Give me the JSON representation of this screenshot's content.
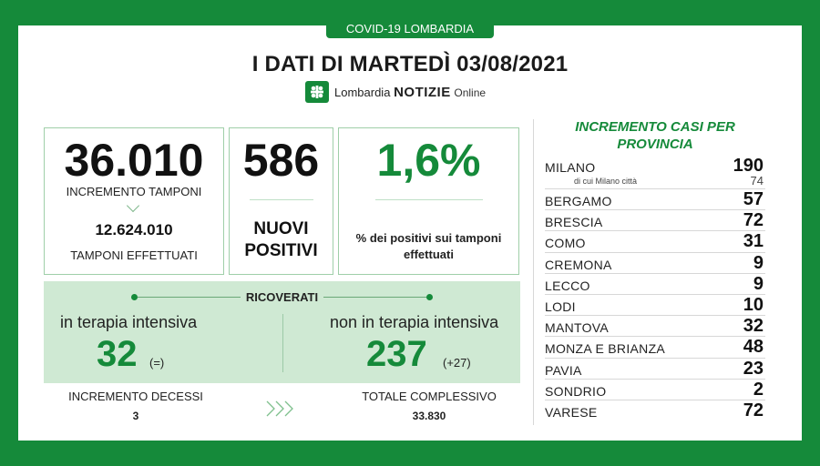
{
  "header": {
    "badge": "COVID-19 LOMBARDIA",
    "title": "I DATI DI MARTEDÌ 03/08/2021",
    "logo": {
      "prefix": "Lombardia",
      "brand": "NOTIZIE",
      "suffix": "Online",
      "icon": "lombardia-cross-icon"
    }
  },
  "tamponi": {
    "increment_value": "36.010",
    "increment_label": "INCREMENTO TAMPONI",
    "total_value": "12.624.010",
    "total_label": "TAMPONI EFFETTUATI"
  },
  "positivi": {
    "value": "586",
    "label": "NUOVI POSITIVI"
  },
  "percentuale": {
    "value": "1,6%",
    "label": "% dei positivi sui tamponi effettuati"
  },
  "ricoverati": {
    "title": "RICOVERATI",
    "terapia_intensiva": {
      "label": "in terapia intensiva",
      "value": "32",
      "variation": "(=)"
    },
    "non_terapia_intensiva": {
      "label": "non in terapia intensiva",
      "value": "237",
      "variation": "(+27)"
    }
  },
  "decessi": {
    "increment_label": "INCREMENTO DECESSI",
    "increment_value": "3",
    "total_label": "TOTALE COMPLESSIVO",
    "total_value": "33.830"
  },
  "province": {
    "title": "INCREMENTO CASI PER PROVINCIA",
    "milano": {
      "name": "MILANO",
      "value": "190",
      "sub_label": "di cui Milano città",
      "sub_value": "74"
    },
    "items": [
      {
        "name": "BERGAMO",
        "value": "57"
      },
      {
        "name": "BRESCIA",
        "value": "72"
      },
      {
        "name": "COMO",
        "value": "31"
      },
      {
        "name": "CREMONA",
        "value": "9"
      },
      {
        "name": "LECCO",
        "value": "9"
      },
      {
        "name": "LODI",
        "value": "10"
      },
      {
        "name": "MANTOVA",
        "value": "32"
      },
      {
        "name": "MONZA E BRIANZA",
        "value": "48"
      },
      {
        "name": "PAVIA",
        "value": "23"
      },
      {
        "name": "SONDRIO",
        "value": "2"
      },
      {
        "name": "VARESE",
        "value": "72"
      }
    ]
  },
  "colors": {
    "brand_green": "#158a3a",
    "panel_green": "#cfe9d3",
    "border_green": "#9fcfa9"
  }
}
